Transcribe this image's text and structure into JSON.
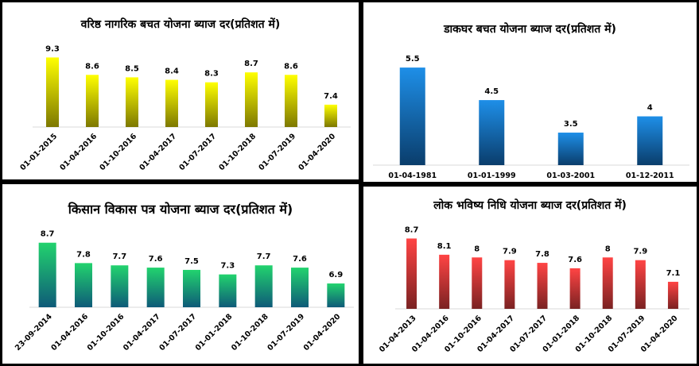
{
  "chart_data": [
    {
      "type": "bar",
      "title": "वरिष्ठ नागरिक बचत योजना ब्याज दर(प्रतिशत में)",
      "categories": [
        "01-01-2015",
        "01-04-2016",
        "01-10-2016",
        "01-04-2017",
        "01-07-2017",
        "01-10-2018",
        "01-07-2019",
        "01-04-2020"
      ],
      "values": [
        9.3,
        8.6,
        8.5,
        8.4,
        8.3,
        8.7,
        8.6,
        7.4
      ],
      "ylim": [
        6.5,
        9.6
      ],
      "grid": false,
      "colors": {
        "top": "#ffff00",
        "bottom": "#7d7800"
      }
    },
    {
      "type": "bar",
      "title": "डाकघर बचत योजना ब्याज दर(प्रतिशत में)",
      "categories": [
        "01-04-1981",
        "01-01-1999",
        "01-03-2001",
        "01-12-2011"
      ],
      "values": [
        5.5,
        4.5,
        3.5,
        4
      ],
      "ylim": [
        2.5,
        5.6
      ],
      "grid": false,
      "colors": {
        "top": "#1e8fe8",
        "bottom": "#0a3d6b"
      }
    },
    {
      "type": "bar",
      "title": "किसान विकास पत्र योजना ब्याज दर(प्रतिशत में)",
      "categories": [
        "23-09-2014",
        "01-04-2016",
        "01-10-2016",
        "01-04-2017",
        "01-07-2017",
        "01-01-2018",
        "01-10-2018",
        "01-07-2019",
        "01-04-2020"
      ],
      "values": [
        8.7,
        7.8,
        7.7,
        7.6,
        7.5,
        7.3,
        7.7,
        7.6,
        6.9
      ],
      "ylim": [
        5.85,
        8.9
      ],
      "grid": false,
      "colors": {
        "top": "#22d36e",
        "bottom": "#0e5a78"
      }
    },
    {
      "type": "bar",
      "title": "लोक भविष्य निधि योजना ब्याज दर(प्रतिशत में)",
      "categories": [
        "01-04-2013",
        "01-04-2016",
        "01-10-2016",
        "01-04-2017",
        "01-07-2017",
        "01-01-2018",
        "01-10-2018",
        "01-07-2019",
        "01-04-2020"
      ],
      "values": [
        8.7,
        8.1,
        8,
        7.9,
        7.8,
        7.6,
        8,
        7.9,
        7.1
      ],
      "ylim": [
        6.1,
        8.8
      ],
      "grid": false,
      "colors": {
        "top": "#ff4444",
        "bottom": "#7a2222"
      }
    }
  ]
}
